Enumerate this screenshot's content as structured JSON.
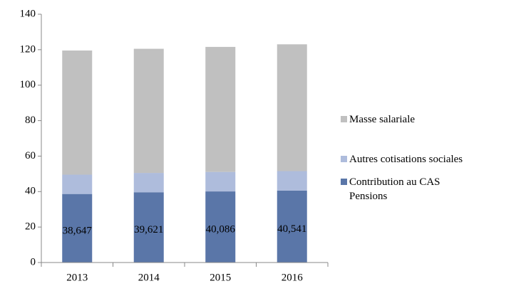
{
  "chart_data": {
    "type": "stacked_bar",
    "categories": [
      "2013",
      "2014",
      "2015",
      "2016"
    ],
    "series": [
      {
        "name": "Contribution au CAS Pensions",
        "color": "#5a76a8",
        "values": [
          38.647,
          39.621,
          40.086,
          40.541
        ],
        "value_labels": [
          "38,647",
          "39,621",
          "40,086",
          "40,541"
        ]
      },
      {
        "name": "Autres cotisations sociales",
        "color": "#aebcdc",
        "values": [
          10.9,
          10.9,
          11.0,
          11.0
        ]
      },
      {
        "name": "Masse salariale",
        "color": "#c0c0c0",
        "values": [
          70.0,
          70.0,
          70.5,
          71.5
        ]
      }
    ],
    "ylim": [
      0,
      140
    ],
    "yticks": [
      0,
      20,
      40,
      60,
      80,
      100,
      120,
      140
    ],
    "grid": false,
    "legend": "right"
  }
}
